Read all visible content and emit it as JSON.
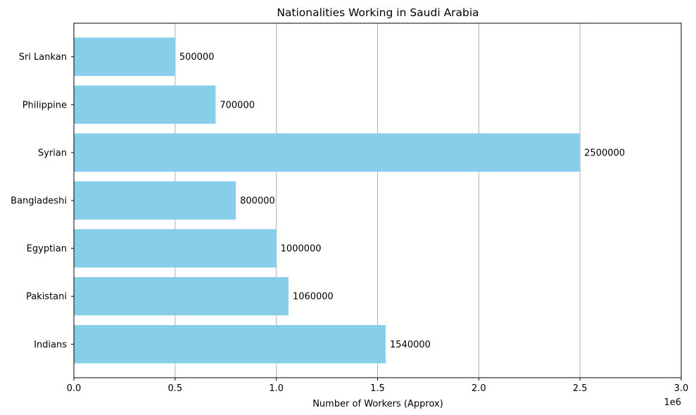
{
  "chart_data": {
    "type": "bar",
    "orientation": "horizontal",
    "title": "Nationalities Working in Saudi Arabia",
    "xlabel": "Number of Workers (Approx)",
    "ylabel": "",
    "x_scale_note": "1e6",
    "xlim": [
      0,
      3000000
    ],
    "x_ticks": [
      0,
      500000,
      1000000,
      1500000,
      2000000,
      2500000,
      3000000
    ],
    "x_tick_labels": [
      "0.0",
      "0.5",
      "1.0",
      "1.5",
      "2.0",
      "2.5",
      "3.0"
    ],
    "categories": [
      "Indians",
      "Pakistani",
      "Egyptian",
      "Bangladeshi",
      "Syrian",
      "Philippine",
      "Sri Lankan"
    ],
    "values": [
      1540000,
      1060000,
      1000000,
      800000,
      2500000,
      700000,
      500000
    ],
    "data_labels": [
      "1540000",
      "1060000",
      "1000000",
      "800000",
      "2500000",
      "700000",
      "500000"
    ],
    "bar_color": "#87CEEB",
    "grid": "x-axis vertical lines",
    "grid_color": "#b0b0b0"
  }
}
